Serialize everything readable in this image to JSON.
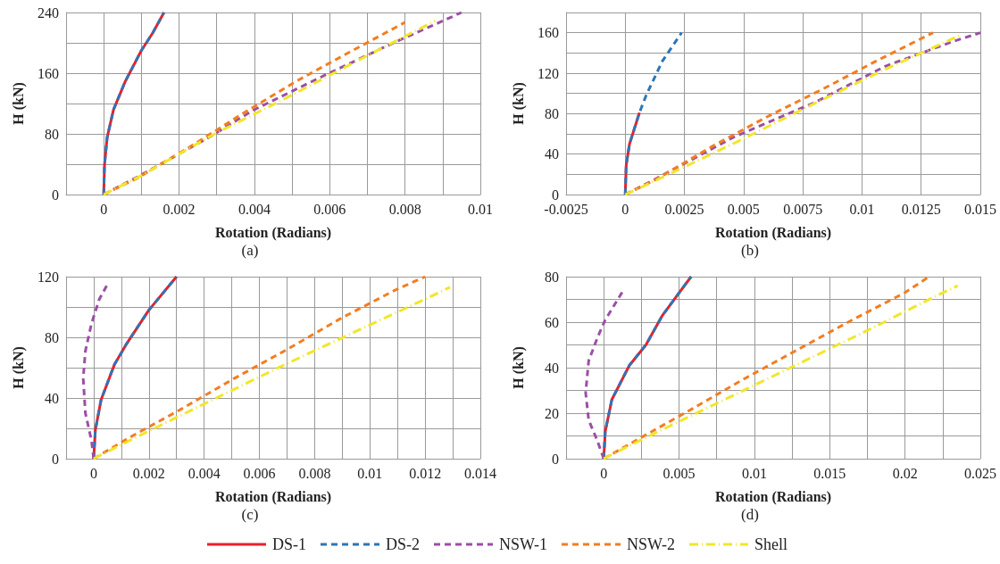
{
  "chart_data": [
    {
      "type": "line",
      "title": "(a)",
      "xlabel": "Rotation (Radians)",
      "ylabel": "H (kN)",
      "grid": true,
      "marker": "none",
      "legend": "bottom",
      "xlim": [
        -0.001,
        0.01
      ],
      "xticks": [
        {
          "value": -0.001,
          "label": null
        },
        0,
        {
          "value": 0.001,
          "label": null
        },
        0.002,
        {
          "value": 0.003,
          "label": null
        },
        0.004,
        {
          "value": 0.005,
          "label": null
        },
        0.006,
        {
          "value": 0.007,
          "label": null
        },
        0.008,
        {
          "value": 0.009,
          "label": null
        },
        0.01
      ],
      "ylim": [
        0,
        240
      ],
      "yticks": [
        0,
        {
          "value": 40,
          "label": null
        },
        80,
        {
          "value": 120,
          "label": null
        },
        160,
        {
          "value": 200,
          "label": null
        },
        240
      ],
      "series": [
        {
          "name": "DS-1",
          "color": "#e8202a",
          "line_style": "solid",
          "x": [
            0,
            2e-05,
            9e-05,
            0.00026,
            0.00057,
            0.001,
            0.0013,
            0.0016
          ],
          "values": [
            0,
            39,
            75,
            112,
            149,
            190,
            213,
            240
          ]
        },
        {
          "name": "DS-2",
          "color": "#2e75b6",
          "line_style": "dashed",
          "x": [
            0,
            2e-05,
            9e-05,
            0.00026,
            0.00057,
            0.001,
            0.0013,
            0.0016
          ],
          "values": [
            0,
            39,
            75,
            112,
            149,
            190,
            213,
            240
          ]
        },
        {
          "name": "NSW-1",
          "color": "#9b4fa5",
          "line_style": "dashed",
          "x": [
            0,
            0.00096,
            0.00278,
            0.004,
            0.0059,
            0.00765,
            0.0095
          ],
          "values": [
            0,
            25,
            75,
            112,
            158,
            199,
            240
          ]
        },
        {
          "name": "NSW-2",
          "color": "#f47d20",
          "line_style": "dashed",
          "x": [
            0,
            0.00087,
            0.00226,
            0.0037,
            0.0051,
            0.0065,
            0.008
          ],
          "values": [
            0,
            21,
            62,
            107,
            149,
            187,
            227
          ]
        },
        {
          "name": "Shell",
          "color": "#f2e629",
          "line_style": "dotted",
          "x": [
            0,
            0.00096,
            0.00287,
            0.00487,
            0.0068,
            0.0088
          ],
          "values": [
            0,
            24,
            78,
            128,
            178,
            229
          ]
        }
      ]
    },
    {
      "type": "line",
      "title": "(b)",
      "xlabel": "Rotation (Radians)",
      "ylabel": "H (kN)",
      "grid": true,
      "marker": "none",
      "xlim": [
        -0.0025,
        0.015
      ],
      "xticks": [
        -0.0025,
        0,
        0.0025,
        0.005,
        0.0075,
        0.01,
        0.0125,
        0.015
      ],
      "ylim": [
        0,
        180
      ],
      "yticks": [
        0,
        {
          "value": 20,
          "label": null
        },
        40,
        {
          "value": 60,
          "label": null
        },
        80,
        {
          "value": 100,
          "label": null
        },
        120,
        {
          "value": 140,
          "label": null
        },
        160,
        {
          "value": 180,
          "label": null
        }
      ],
      "series": [
        {
          "color": "#e8202a",
          "line_style": "solid",
          "x": [
            0,
            4e-05,
            0.00018,
            0.0006
          ],
          "values": [
            0,
            29,
            50,
            81
          ]
        },
        {
          "color": "#2e75b6",
          "line_style": "dashed",
          "x": [
            0,
            4e-05,
            0.00018,
            0.0006,
            0.00088,
            0.00157,
            0.00238
          ],
          "values": [
            0,
            29,
            50,
            81,
            98,
            132,
            160
          ]
        },
        {
          "color": "#9b4fa5",
          "line_style": "dashed",
          "x": [
            0,
            0.00157,
            0.0046,
            0.008,
            0.011,
            0.0138,
            0.015
          ],
          "values": [
            0,
            19,
            57,
            91,
            127,
            151,
            160
          ]
        },
        {
          "color": "#f47d20",
          "line_style": "dashed",
          "x": [
            0,
            0.0013,
            0.0037,
            0.006,
            0.0084,
            0.0106,
            0.013
          ],
          "values": [
            0,
            15,
            48,
            77,
            105,
            132,
            160
          ]
        },
        {
          "color": "#f2e629",
          "line_style": "dotted",
          "x": [
            0,
            0.00157,
            0.0048,
            0.0079,
            0.011,
            0.0142
          ],
          "values": [
            0,
            17,
            53,
            89,
            124,
            158
          ]
        }
      ]
    },
    {
      "type": "line",
      "title": "(c)",
      "xlabel": "Rotation (Radians)",
      "ylabel": "H (kN)",
      "grid": true,
      "marker": "none",
      "xlim": [
        -0.001,
        0.014
      ],
      "xticks": [
        {
          "value": -0.001,
          "label": null
        },
        0,
        {
          "value": 0.001,
          "label": null
        },
        0.002,
        {
          "value": 0.003,
          "label": null
        },
        0.004,
        {
          "value": 0.005,
          "label": null
        },
        0.006,
        {
          "value": 0.007,
          "label": null
        },
        0.008,
        {
          "value": 0.009,
          "label": null
        },
        0.01,
        {
          "value": 0.011,
          "label": null
        },
        0.012,
        {
          "value": 0.013,
          "label": null
        },
        0.014
      ],
      "ylim": [
        0,
        120
      ],
      "yticks": [
        0,
        {
          "value": 20,
          "label": null
        },
        40,
        {
          "value": 60,
          "label": null
        },
        80,
        {
          "value": 100,
          "label": null
        },
        120
      ],
      "series": [
        {
          "color": "#e8202a",
          "line_style": "solid",
          "x": [
            0,
            6e-05,
            0.00027,
            0.00075,
            0.0012,
            0.002,
            0.003
          ],
          "values": [
            0,
            19,
            39,
            62,
            76,
            98,
            120
          ]
        },
        {
          "color": "#2e75b6",
          "line_style": "dashed",
          "x": [
            0,
            6e-05,
            0.00027,
            0.00075,
            0.0012,
            0.002,
            0.003
          ],
          "values": [
            0,
            19,
            39,
            62,
            76,
            98,
            120
          ]
        },
        {
          "color": "#9b4fa5",
          "line_style": "dashed",
          "x": [
            0,
            -8e-05,
            -0.0003,
            -0.00038,
            -0.0003,
            -8e-05,
            0.0002,
            0.0005
          ],
          "values": [
            0,
            12,
            30,
            53,
            71,
            89,
            105,
            115
          ]
        },
        {
          "color": "#f47d20",
          "line_style": "dashed",
          "x": [
            0,
            0.0013,
            0.0032,
            0.0051,
            0.007,
            0.0089,
            0.0109,
            0.012
          ],
          "values": [
            0,
            14,
            33,
            53,
            72,
            92,
            111,
            120
          ]
        },
        {
          "color": "#f2e629",
          "line_style": "dotted",
          "x": [
            0,
            0.0013,
            0.0041,
            0.0068,
            0.0095,
            0.0121,
            0.0129
          ],
          "values": [
            0,
            12,
            37,
            61,
            84,
            106,
            113
          ]
        }
      ]
    },
    {
      "type": "line",
      "title": "(d)",
      "xlabel": "Rotation (Radians)",
      "ylabel": "H (kN)",
      "grid": true,
      "marker": "none",
      "xlim": [
        -0.0025,
        0.025
      ],
      "xticks": [
        {
          "value": -0.0025,
          "label": null
        },
        0,
        {
          "value": 0.0025,
          "label": null
        },
        0.005,
        {
          "value": 0.0075,
          "label": null
        },
        0.01,
        {
          "value": 0.0125,
          "label": null
        },
        0.015,
        {
          "value": 0.0175,
          "label": null
        },
        0.02,
        {
          "value": 0.0225,
          "label": null
        },
        0.025
      ],
      "ylim": [
        0,
        80
      ],
      "yticks": [
        0,
        {
          "value": 10,
          "label": null
        },
        20,
        {
          "value": 30,
          "label": null
        },
        40,
        {
          "value": 50,
          "label": null
        },
        60,
        {
          "value": 70,
          "label": null
        },
        80
      ],
      "series": [
        {
          "color": "#e8202a",
          "line_style": "solid",
          "x": [
            0,
            0.0001,
            0.00054,
            0.0017,
            0.0028,
            0.0039,
            0.0058
          ],
          "values": [
            0,
            12,
            26,
            41,
            50,
            63,
            80
          ]
        },
        {
          "color": "#2e75b6",
          "line_style": "dashed",
          "x": [
            0,
            0.0001,
            0.00054,
            0.0017,
            0.0028,
            0.0039,
            0.0058
          ],
          "values": [
            0,
            12,
            26,
            41,
            50,
            63,
            80
          ]
        },
        {
          "color": "#9b4fa5",
          "line_style": "dashed",
          "x": [
            0,
            -0.00043,
            -0.001,
            -0.0012,
            -0.001,
            -0.00043,
            0.0001,
            0.0013
          ],
          "values": [
            0,
            8,
            17,
            29,
            43,
            53,
            61,
            74
          ]
        },
        {
          "color": "#f47d20",
          "line_style": "dashed",
          "x": [
            0,
            0.0024,
            0.0059,
            0.0093,
            0.0129,
            0.0165,
            0.02,
            0.0216
          ],
          "values": [
            0,
            9,
            22,
            35,
            48,
            61,
            73,
            80
          ]
        },
        {
          "color": "#f2e629",
          "line_style": "dotted",
          "x": [
            0,
            0.0024,
            0.0074,
            0.0124,
            0.0174,
            0.0222,
            0.0235
          ],
          "values": [
            0,
            8,
            24,
            40,
            56,
            72,
            76
          ]
        }
      ]
    }
  ]
}
